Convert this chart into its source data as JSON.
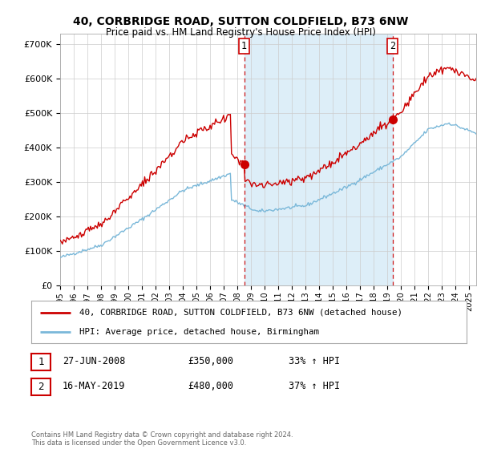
{
  "title": "40, CORBRIDGE ROAD, SUTTON COLDFIELD, B73 6NW",
  "subtitle": "Price paid vs. HM Land Registry's House Price Index (HPI)",
  "ylabel_ticks": [
    "£0",
    "£100K",
    "£200K",
    "£300K",
    "£400K",
    "£500K",
    "£600K",
    "£700K"
  ],
  "ytick_vals": [
    0,
    100000,
    200000,
    300000,
    400000,
    500000,
    600000,
    700000
  ],
  "ylim": [
    0,
    730000
  ],
  "xlim_start": 1995.0,
  "xlim_end": 2025.5,
  "sale1_x": 2008.49,
  "sale1_y": 350000,
  "sale1_label": "1",
  "sale2_x": 2019.37,
  "sale2_y": 480000,
  "sale2_label": "2",
  "legend_line1": "40, CORBRIDGE ROAD, SUTTON COLDFIELD, B73 6NW (detached house)",
  "legend_line2": "HPI: Average price, detached house, Birmingham",
  "table_row1_num": "1",
  "table_row1_date": "27-JUN-2008",
  "table_row1_price": "£350,000",
  "table_row1_hpi": "33% ↑ HPI",
  "table_row2_num": "2",
  "table_row2_date": "16-MAY-2019",
  "table_row2_price": "£480,000",
  "table_row2_hpi": "37% ↑ HPI",
  "footer": "Contains HM Land Registry data © Crown copyright and database right 2024.\nThis data is licensed under the Open Government Licence v3.0.",
  "hpi_color": "#7ab8d9",
  "price_color": "#cc0000",
  "shade_color": "#ddeef8",
  "background_color": "#ffffff",
  "grid_color": "#cccccc",
  "vline_color": "#cc0000"
}
